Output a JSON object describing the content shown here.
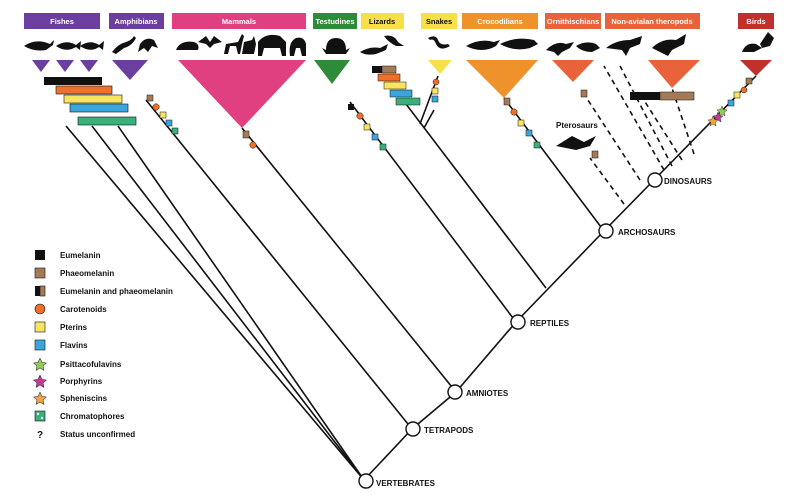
{
  "groups": [
    {
      "label": "Fishes",
      "color": "#6b3fa0"
    },
    {
      "label": "Amphibians",
      "color": "#6b3fa0"
    },
    {
      "label": "Mammals",
      "color": "#e0407f"
    },
    {
      "label": "Testudines",
      "color": "#2e8b3a"
    },
    {
      "label": "Lizards",
      "color": "#f5e04a"
    },
    {
      "label": "Snakes",
      "color": "#f5e04a"
    },
    {
      "label": "Crocodilians",
      "color": "#f0922b"
    },
    {
      "label": "Ornithischians",
      "color": "#e8623a"
    },
    {
      "label": "Non-avialan theropods",
      "color": "#e8623a"
    },
    {
      "label": "Birds",
      "color": "#c0302c"
    }
  ],
  "nodes": {
    "vertebrates": "VERTEBRATES",
    "tetrapods": "TETRAPODS",
    "amniotes": "AMNIOTES",
    "reptiles": "REPTILES",
    "archosaurs": "ARCHOSAURS",
    "dinosaurs": "DINOSAURS",
    "pterosaurs": "Pterosaurs"
  },
  "legend": [
    {
      "label": "Eumelanin",
      "icon": "eumelanin-square",
      "color": "#111111"
    },
    {
      "label": "Phaeomelanin",
      "icon": "phaeomelanin-square",
      "color": "#a57b57"
    },
    {
      "label": "Eumelanin and phaeomelanin",
      "icon": "mixed-melanin-square",
      "color": "#111111"
    },
    {
      "label": "Carotenoids",
      "icon": "carotenoid-circle",
      "color": "#f0702b"
    },
    {
      "label": "Pterins",
      "icon": "pterin-square",
      "color": "#f7e463"
    },
    {
      "label": "Flavins",
      "icon": "flavin-square",
      "color": "#3aa6dc"
    },
    {
      "label": "Psittacofulavins",
      "icon": "psittacofulvin-star",
      "color": "#8fce4a"
    },
    {
      "label": "Porphyrins",
      "icon": "porphyrin-star",
      "color": "#c23a9a"
    },
    {
      "label": "Spheniscins",
      "icon": "spheniscin-star",
      "color": "#f0a63a"
    },
    {
      "label": "Chromatophores",
      "icon": "chromatophore-square",
      "color": "#3bb07a"
    },
    {
      "label": "Status unconfirmed",
      "icon": "question-mark",
      "color": "#111111"
    }
  ],
  "legend_question_glyph": "?",
  "colors": {
    "eumelanin": "#111111",
    "phaeomelanin": "#a57b57",
    "carotenoid": "#f0702b",
    "pterin": "#f7e463",
    "flavin": "#3aa6dc",
    "chromatophore": "#3bb07a",
    "line": "#111111"
  }
}
